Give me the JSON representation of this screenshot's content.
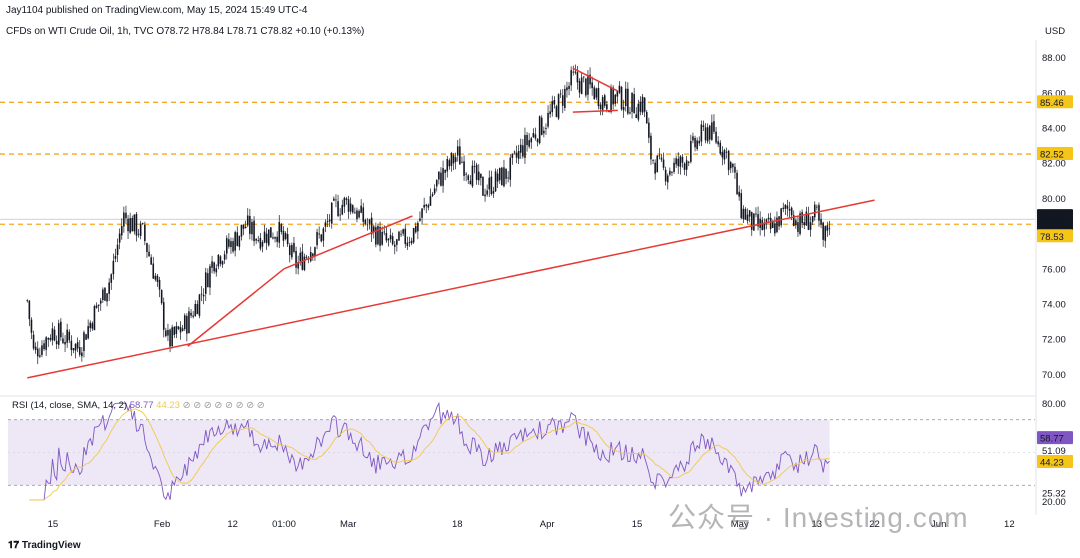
{
  "header": {
    "publisher": "Jay1104 published on TradingView.com, May 15, 2024 15:49 UTC-4",
    "symbol_line": "CFDs on WTI Crude Oil, 1h, TVC  O78.72  H78.84  L78.71  C78.82  +0.10 (+0.13%)"
  },
  "footer": {
    "brand": "TradingView"
  },
  "watermark": "公众号 · Investing.com",
  "colors": {
    "candle": "#131722",
    "trendline": "#e53935",
    "dashed_level": "#f5a623",
    "rsi_line": "#7e57c2",
    "rsi_sma": "#f2c94c",
    "rsi_band": "#ede7f6",
    "price_tag": "#131722",
    "level_tag": "#f5c518"
  },
  "chart_data": [
    {
      "type": "candlestick",
      "title": "CFDs on WTI Crude Oil, 1h, TVC",
      "currency": "USD",
      "ylim": [
        69,
        89
      ],
      "y_ticks": [
        "88.00",
        "86.00",
        "84.00",
        "82.00",
        "80.00",
        "78.00",
        "76.00",
        "74.00",
        "72.00",
        "70.00"
      ],
      "x_ticks": [
        "15",
        "Feb",
        "12",
        "01:00",
        "Mar",
        "18",
        "Apr",
        "15",
        "May",
        "13",
        "22",
        "Jun",
        "12"
      ],
      "price_path": [
        {
          "d": "Jan 11",
          "p": 74.2
        },
        {
          "d": "Jan 12",
          "p": 71.2
        },
        {
          "d": "Jan 15",
          "p": 72.5
        },
        {
          "d": "Jan 19",
          "p": 71.5
        },
        {
          "d": "Jan 24",
          "p": 75.5
        },
        {
          "d": "Jan 26",
          "p": 79.0
        },
        {
          "d": "Jan 29",
          "p": 78.0
        },
        {
          "d": "Jan 31",
          "p": 75.5
        },
        {
          "d": "Feb 1",
          "p": 73.5
        },
        {
          "d": "Feb 2",
          "p": 71.8
        },
        {
          "d": "Feb 5",
          "p": 73.0
        },
        {
          "d": "Feb 7",
          "p": 74.5
        },
        {
          "d": "Feb 9",
          "p": 76.5
        },
        {
          "d": "Feb 12",
          "p": 77.5
        },
        {
          "d": "Feb 14",
          "p": 78.5
        },
        {
          "d": "Feb 16",
          "p": 77.8
        },
        {
          "d": "Feb 19",
          "p": 78.2
        },
        {
          "d": "Feb 22",
          "p": 76.2
        },
        {
          "d": "Feb 26",
          "p": 78.0
        },
        {
          "d": "Feb 28",
          "p": 79.5
        },
        {
          "d": "Mar 1",
          "p": 79.8
        },
        {
          "d": "Mar 4",
          "p": 78.5
        },
        {
          "d": "Mar 6",
          "p": 77.8
        },
        {
          "d": "Mar 8",
          "p": 77.2
        },
        {
          "d": "Mar 11",
          "p": 78.0
        },
        {
          "d": "Mar 13",
          "p": 79.5
        },
        {
          "d": "Mar 15",
          "p": 81.0
        },
        {
          "d": "Mar 18",
          "p": 82.5
        },
        {
          "d": "Mar 20",
          "p": 81.5
        },
        {
          "d": "Mar 22",
          "p": 80.5
        },
        {
          "d": "Mar 26",
          "p": 81.5
        },
        {
          "d": "Mar 28",
          "p": 82.8
        },
        {
          "d": "Apr 1",
          "p": 84.5
        },
        {
          "d": "Apr 3",
          "p": 85.5
        },
        {
          "d": "Apr 5",
          "p": 86.8
        },
        {
          "d": "Apr 8",
          "p": 86.2
        },
        {
          "d": "Apr 10",
          "p": 85.5
        },
        {
          "d": "Apr 12",
          "p": 85.8
        },
        {
          "d": "Apr 15",
          "p": 85.2
        },
        {
          "d": "Apr 16",
          "p": 85.5
        },
        {
          "d": "Apr 17",
          "p": 82.5
        },
        {
          "d": "Apr 19",
          "p": 81.5
        },
        {
          "d": "Apr 22",
          "p": 82.0
        },
        {
          "d": "Apr 24",
          "p": 83.0
        },
        {
          "d": "Apr 26",
          "p": 84.0
        },
        {
          "d": "Apr 29",
          "p": 82.5
        },
        {
          "d": "Apr 30",
          "p": 81.5
        },
        {
          "d": "May 1",
          "p": 79.5
        },
        {
          "d": "May 3",
          "p": 78.5
        },
        {
          "d": "May 6",
          "p": 78.2
        },
        {
          "d": "May 7",
          "p": 78.8
        },
        {
          "d": "May 8",
          "p": 79.2
        },
        {
          "d": "May 9",
          "p": 79.5
        },
        {
          "d": "May 10",
          "p": 78.5
        },
        {
          "d": "May 13",
          "p": 79.0
        },
        {
          "d": "May 14",
          "p": 77.5
        },
        {
          "d": "May 15",
          "p": 78.8
        }
      ],
      "horizontal_levels": [
        85.46,
        82.52,
        78.53
      ],
      "price_tags": [
        {
          "label": "85.46",
          "value": 85.46,
          "style": "level"
        },
        {
          "label": "82.52",
          "value": 82.52,
          "style": "level"
        },
        {
          "label": "78.82",
          "value": 78.82,
          "style": "last"
        },
        {
          "label": "10:23",
          "value": 78.82,
          "style": "timer"
        },
        {
          "label": "78.53",
          "value": 78.53,
          "style": "level"
        }
      ],
      "trendlines": [
        {
          "from": {
            "d": "Jan 11",
            "p": 69.8
          },
          "to": {
            "d": "May 22",
            "p": 79.9
          }
        },
        {
          "from": {
            "d": "Feb 5",
            "p": 71.6
          },
          "to": {
            "d": "Feb 20",
            "p": 76.0
          }
        },
        {
          "from": {
            "d": "Feb 20",
            "p": 76.0
          },
          "to": {
            "d": "Mar 11",
            "p": 79.0
          }
        },
        {
          "from": {
            "d": "Apr 5",
            "p": 87.4
          },
          "to": {
            "d": "Apr 12",
            "p": 86.1
          }
        },
        {
          "from": {
            "d": "Apr 5",
            "p": 84.9
          },
          "to": {
            "d": "Apr 12",
            "p": 85.0
          }
        }
      ]
    },
    {
      "type": "line",
      "title": "RSI (14, close, SMA, 14, 2)",
      "ylim": [
        18,
        82
      ],
      "y_ticks": [
        "80.00",
        "51.09",
        "25.32",
        "20.00"
      ],
      "band": [
        30,
        70
      ],
      "series": [
        {
          "name": "RSI",
          "last": 58.77
        },
        {
          "name": "SMA",
          "last": 44.23
        }
      ],
      "value_tags": [
        {
          "label": "58.77",
          "value": 58.77,
          "style": "rsi"
        },
        {
          "label": "44.23",
          "value": 44.23,
          "style": "sma"
        }
      ]
    }
  ]
}
